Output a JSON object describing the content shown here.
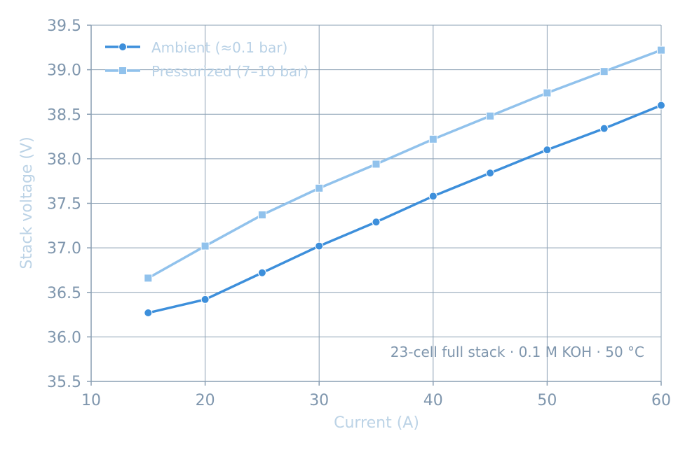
{
  "chart_data": {
    "type": "line",
    "xlabel": "Current (A)",
    "ylabel": "Stack voltage (V)",
    "xlim": [
      10,
      60
    ],
    "ylim": [
      35.5,
      39.5
    ],
    "x_ticks": [
      "10",
      "20",
      "30",
      "40",
      "50",
      "60"
    ],
    "y_ticks": [
      "35.5",
      "36.0",
      "36.5",
      "37.0",
      "37.5",
      "38.0",
      "38.5",
      "39.0",
      "39.5"
    ],
    "grid": true,
    "legend_position": "top-left",
    "annotation": "23-cell full stack · 0.1 M KOH · 50 °C",
    "series": [
      {
        "name": "Ambient (≈0.1 bar)",
        "marker": "circle",
        "color": "#3d8fdb",
        "x": [
          15,
          20,
          25,
          30,
          35,
          40,
          45,
          50,
          55,
          60
        ],
        "y": [
          36.27,
          36.42,
          36.72,
          37.02,
          37.29,
          37.58,
          37.84,
          38.1,
          38.34,
          38.6
        ]
      },
      {
        "name": "Pressurized (7–10 bar)",
        "marker": "square",
        "color": "#91c2ec",
        "x": [
          15,
          20,
          25,
          30,
          35,
          40,
          45,
          50,
          55,
          60
        ],
        "y": [
          36.66,
          37.02,
          37.37,
          37.67,
          37.94,
          38.22,
          38.48,
          38.74,
          38.98,
          39.22
        ]
      }
    ]
  }
}
